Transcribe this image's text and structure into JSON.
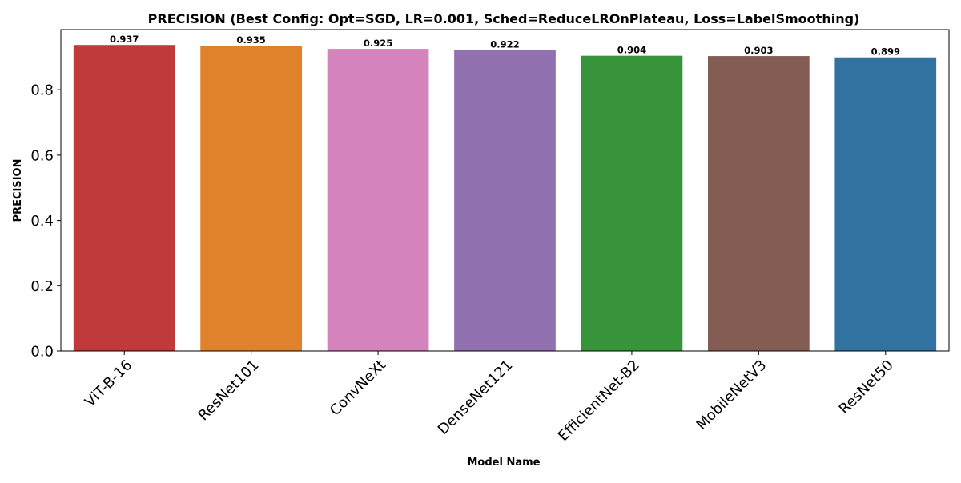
{
  "chart_data": {
    "type": "bar",
    "title": "PRECISION (Best Config: Opt=SGD, LR=0.001, Sched=ReduceLROnPlateau, Loss=LabelSmoothing)",
    "xlabel": "Model Name",
    "ylabel": "PRECISION",
    "categories": [
      "ViT-B-16",
      "ResNet101",
      "ConvNeXt",
      "DenseNet121",
      "EfficientNet-B2",
      "MobileNetV3",
      "ResNet50"
    ],
    "values": [
      0.937,
      0.935,
      0.925,
      0.922,
      0.904,
      0.903,
      0.899
    ],
    "value_labels": [
      "0.937",
      "0.935",
      "0.925",
      "0.922",
      "0.904",
      "0.903",
      "0.899"
    ],
    "colors": [
      "#c03a3b",
      "#e0812c",
      "#d583bd",
      "#9271b0",
      "#38943a",
      "#835c53",
      "#3172a0"
    ],
    "yticks": [
      0.0,
      0.2,
      0.4,
      0.6,
      0.8
    ],
    "ytick_labels": [
      "0.0",
      "0.2",
      "0.4",
      "0.6",
      "0.8"
    ],
    "ylim": [
      0,
      0.984
    ],
    "grid": false,
    "legend": "none"
  }
}
